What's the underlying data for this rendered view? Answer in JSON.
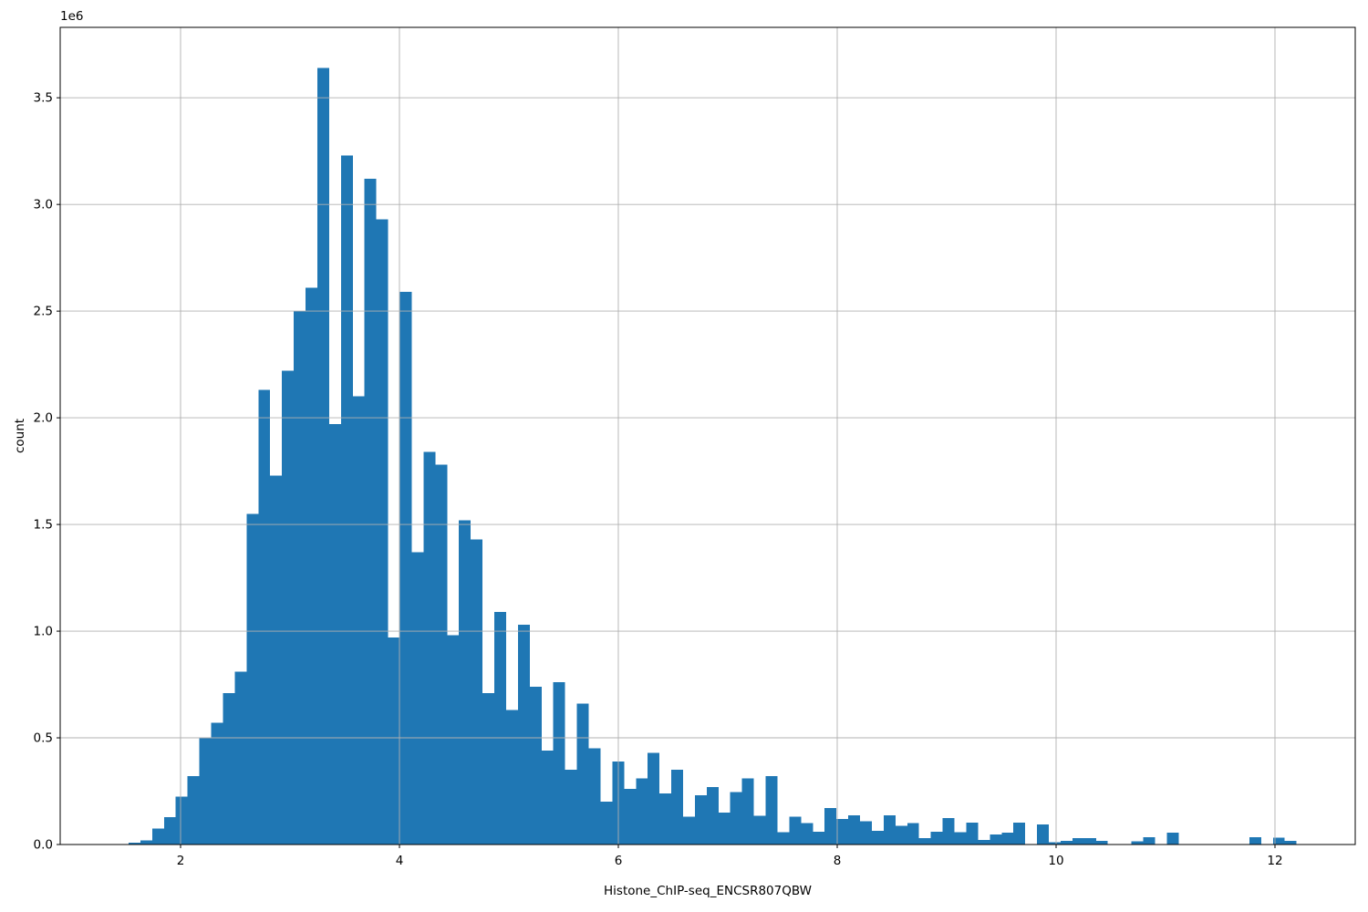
{
  "chart_data": {
    "type": "bar",
    "subtype": "histogram",
    "title": "",
    "xlabel": "Histone_ChIP-seq_ENCSR807QBW",
    "ylabel": "count",
    "y_offset_label": "1e6",
    "x_ticks": [
      2,
      4,
      6,
      8,
      10,
      12
    ],
    "y_ticks": [
      0,
      500000,
      1000000,
      1500000,
      2000000,
      2500000,
      3000000,
      3500000
    ],
    "y_tick_labels": [
      "0.0",
      "0.5",
      "1.0",
      "1.5",
      "2.0",
      "2.5",
      "3.0",
      "3.5"
    ],
    "xlim": [
      0.9,
      12.7333
    ],
    "ylim": [
      0,
      3830000
    ],
    "grid": true,
    "legend_position": "none",
    "bar_color": "#1f77b4",
    "grid_color": "#b0b0b0",
    "spine_color": "#000000",
    "bin_start": 1.525,
    "bin_width": 0.1078,
    "counts": [
      8000,
      20000,
      75000,
      128000,
      225000,
      320000,
      500000,
      570000,
      710000,
      810000,
      1550000,
      2130000,
      1730000,
      2220000,
      2500000,
      2610000,
      3640000,
      1970000,
      3230000,
      2100000,
      3120000,
      2930000,
      970000,
      2590000,
      1370000,
      1840000,
      1780000,
      980000,
      1520000,
      1430000,
      710000,
      1090000,
      630000,
      1030000,
      740000,
      440000,
      760000,
      350000,
      660000,
      450000,
      200000,
      390000,
      260000,
      310000,
      430000,
      240000,
      350000,
      130000,
      230000,
      270000,
      150000,
      245000,
      310000,
      135000,
      320000,
      57000,
      130000,
      100000,
      60000,
      170000,
      120000,
      137000,
      110000,
      64000,
      137000,
      87000,
      100000,
      30000,
      60000,
      125000,
      57000,
      103000,
      21000,
      46000,
      56000,
      103000,
      0,
      95000,
      10000,
      18000,
      30000,
      30000,
      18000,
      0,
      0,
      15000,
      35000,
      0,
      55000,
      0,
      0,
      0,
      0,
      0,
      0,
      35000,
      0,
      33000,
      18000
    ]
  }
}
